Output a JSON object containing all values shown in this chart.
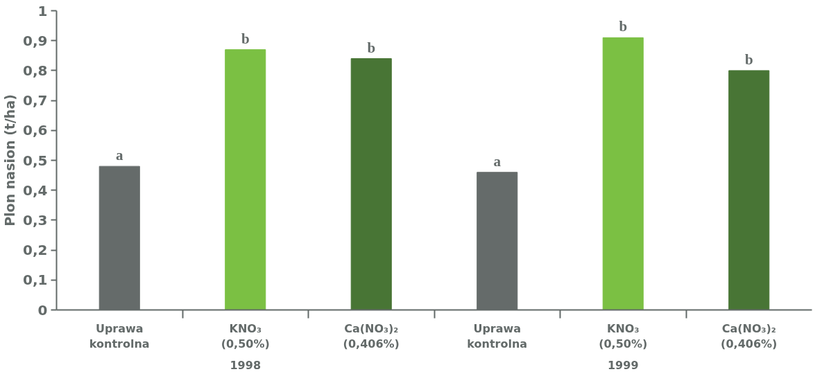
{
  "chart_data": {
    "type": "bar",
    "ylabel": "Plon nasion (t/ha)",
    "categories": [
      "Uprawa\nkontrolna",
      "KNO₃\n(0,50%)",
      "Ca(NO₃)₂\n(0,406%)",
      "Uprawa\nkontrolna",
      "KNO₃\n(0,50%)",
      "Ca(NO₃)₂\n(0,406%)"
    ],
    "values": [
      0.48,
      0.87,
      0.84,
      0.46,
      0.91,
      0.8
    ],
    "colors": [
      "#656b6a",
      "#7bc043",
      "#487535",
      "#656b6a",
      "#7bc043",
      "#487535"
    ],
    "value_labels": [
      "a",
      "b",
      "b",
      "a",
      "b",
      "b"
    ],
    "annotations": [
      "1998",
      "1999"
    ],
    "ylim": [
      0,
      1
    ],
    "yticks": [
      0,
      {
        "value": 0.1,
        "label": "0,1"
      },
      {
        "value": 0.2,
        "label": "0,2"
      },
      {
        "value": 0.3,
        "label": "0,3"
      },
      {
        "value": 0.4,
        "label": "0,4"
      },
      {
        "value": 0.5,
        "label": "0,5"
      },
      {
        "value": 0.6,
        "label": "0,6"
      },
      {
        "value": 0.7,
        "label": "0,7"
      },
      {
        "value": 0.8,
        "label": "0,8"
      },
      {
        "value": 0.9,
        "label": "0,9"
      },
      1
    ],
    "grid": false
  }
}
